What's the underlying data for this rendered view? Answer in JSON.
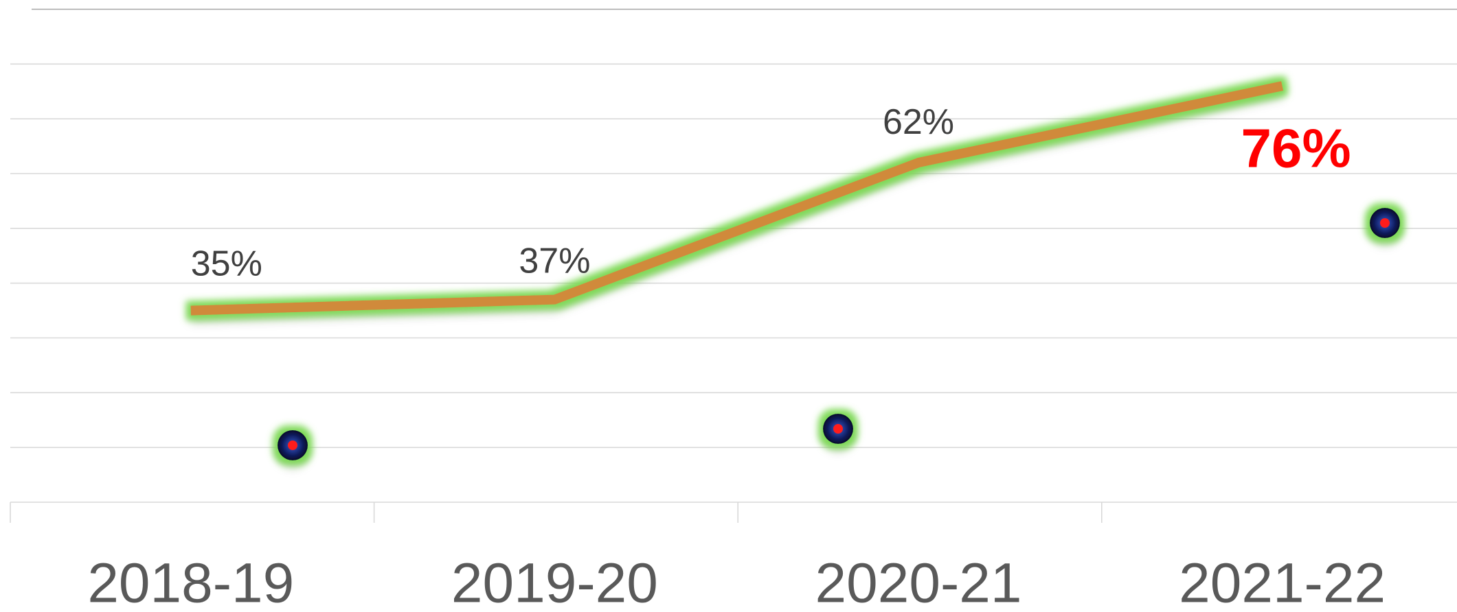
{
  "chart_data": {
    "type": "line",
    "categories": [
      "2018-19",
      "2019-20",
      "2020-21",
      "2021-22"
    ],
    "series": [
      {
        "color": "#d08a3a",
        "values": [
          35,
          37,
          62,
          76
        ],
        "value_labels": [
          "35%",
          "37%",
          "62%",
          "76%"
        ]
      }
    ],
    "label_color": "#404040",
    "highlight_color": "#ff0000",
    "ylim": [
      0,
      90
    ],
    "yticks": [
      0,
      10,
      20,
      30,
      40,
      50,
      60,
      70,
      80,
      90
    ],
    "grid": true
  }
}
